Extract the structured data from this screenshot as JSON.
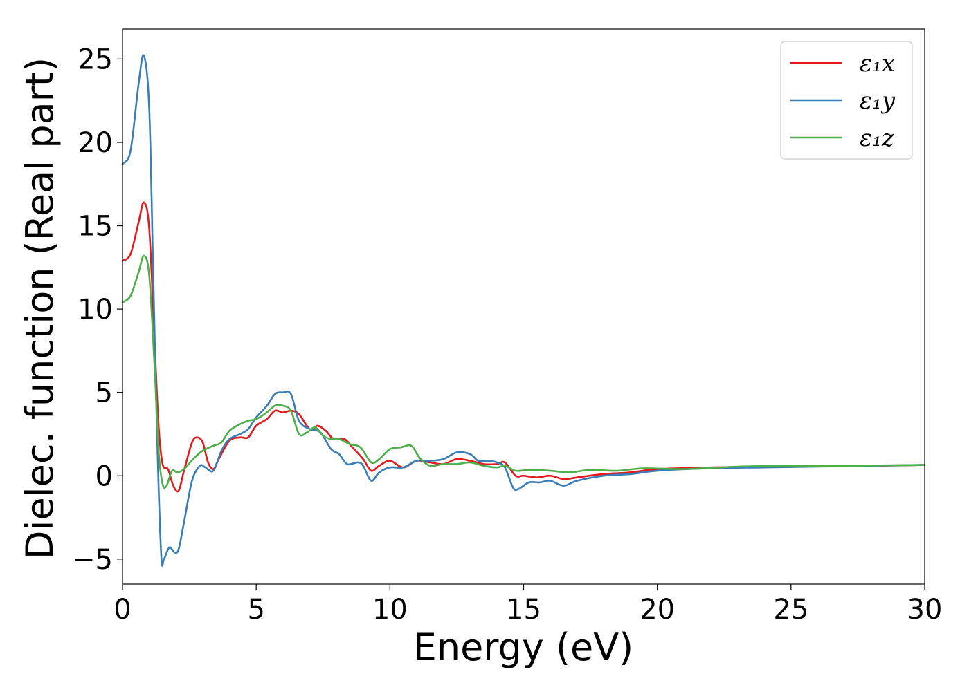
{
  "chart_data": {
    "type": "line",
    "xlabel": "Energy (eV)",
    "ylabel": "Dielec. function (Real part)",
    "xlim": [
      0,
      30
    ],
    "ylim": [
      -6.5,
      26.8
    ],
    "xticks": [
      0,
      5,
      10,
      15,
      20,
      25,
      30
    ],
    "yticks": [
      -5,
      0,
      5,
      10,
      15,
      20,
      25
    ],
    "xtick_labels": [
      "0",
      "5",
      "10",
      "15",
      "20",
      "25",
      "30"
    ],
    "ytick_labels": [
      "−5",
      "0",
      "5",
      "10",
      "15",
      "20",
      "25"
    ],
    "grid": false,
    "legend_position": "top-right",
    "series": [
      {
        "name": "ε₁x",
        "color": "#e41a1c",
        "points": [
          [
            0,
            12.9
          ],
          [
            0.3,
            13.3
          ],
          [
            0.6,
            15.2
          ],
          [
            0.8,
            16.4
          ],
          [
            1.0,
            14.8
          ],
          [
            1.2,
            8.0
          ],
          [
            1.35,
            3.0
          ],
          [
            1.5,
            0.7
          ],
          [
            1.7,
            0.4
          ],
          [
            1.9,
            -0.6
          ],
          [
            2.1,
            -0.9
          ],
          [
            2.3,
            0.3
          ],
          [
            2.6,
            2.0
          ],
          [
            2.8,
            2.3
          ],
          [
            3.0,
            2.0
          ],
          [
            3.2,
            0.8
          ],
          [
            3.4,
            0.4
          ],
          [
            3.6,
            1.0
          ],
          [
            4.0,
            2.1
          ],
          [
            4.4,
            2.3
          ],
          [
            4.7,
            2.3
          ],
          [
            5.0,
            3.0
          ],
          [
            5.4,
            3.4
          ],
          [
            5.7,
            3.9
          ],
          [
            6.0,
            3.8
          ],
          [
            6.3,
            3.9
          ],
          [
            6.6,
            3.7
          ],
          [
            7.0,
            2.8
          ],
          [
            7.3,
            3.0
          ],
          [
            7.6,
            2.7
          ],
          [
            7.9,
            2.2
          ],
          [
            8.3,
            2.2
          ],
          [
            8.6,
            1.7
          ],
          [
            9.0,
            1.0
          ],
          [
            9.3,
            0.3
          ],
          [
            9.6,
            0.6
          ],
          [
            10.0,
            0.9
          ],
          [
            10.5,
            0.5
          ],
          [
            11.0,
            0.9
          ],
          [
            11.5,
            0.8
          ],
          [
            12.0,
            0.7
          ],
          [
            12.5,
            1.0
          ],
          [
            13.0,
            0.9
          ],
          [
            13.5,
            0.7
          ],
          [
            14.0,
            0.7
          ],
          [
            14.3,
            0.8
          ],
          [
            14.7,
            0.0
          ],
          [
            15.0,
            0.0
          ],
          [
            15.5,
            -0.1
          ],
          [
            16.0,
            0.0
          ],
          [
            16.5,
            -0.2
          ],
          [
            17.0,
            -0.1
          ],
          [
            18.0,
            0.1
          ],
          [
            19.0,
            0.2
          ],
          [
            20.0,
            0.4
          ],
          [
            22.0,
            0.5
          ],
          [
            24.0,
            0.55
          ],
          [
            26.0,
            0.6
          ],
          [
            28.0,
            0.6
          ],
          [
            30.0,
            0.65
          ]
        ]
      },
      {
        "name": "ε₁y",
        "color": "#377eb8",
        "points": [
          [
            0,
            18.7
          ],
          [
            0.3,
            19.5
          ],
          [
            0.6,
            23.5
          ],
          [
            0.8,
            25.2
          ],
          [
            1.0,
            22.0
          ],
          [
            1.15,
            12.0
          ],
          [
            1.3,
            2.0
          ],
          [
            1.45,
            -4.8
          ],
          [
            1.55,
            -5.0
          ],
          [
            1.75,
            -4.3
          ],
          [
            1.95,
            -4.6
          ],
          [
            2.1,
            -4.4
          ],
          [
            2.3,
            -2.8
          ],
          [
            2.6,
            -0.3
          ],
          [
            2.9,
            0.6
          ],
          [
            3.1,
            0.5
          ],
          [
            3.4,
            0.3
          ],
          [
            3.7,
            1.5
          ],
          [
            4.0,
            2.2
          ],
          [
            4.4,
            2.5
          ],
          [
            4.7,
            2.8
          ],
          [
            5.0,
            3.5
          ],
          [
            5.4,
            4.2
          ],
          [
            5.7,
            4.9
          ],
          [
            6.0,
            5.0
          ],
          [
            6.3,
            4.9
          ],
          [
            6.6,
            3.3
          ],
          [
            7.0,
            2.8
          ],
          [
            7.4,
            2.6
          ],
          [
            7.8,
            1.6
          ],
          [
            8.1,
            1.3
          ],
          [
            8.4,
            0.7
          ],
          [
            8.8,
            0.8
          ],
          [
            9.0,
            0.6
          ],
          [
            9.3,
            -0.3
          ],
          [
            9.6,
            0.2
          ],
          [
            10.0,
            0.5
          ],
          [
            10.5,
            0.5
          ],
          [
            11.0,
            0.9
          ],
          [
            11.5,
            0.9
          ],
          [
            12.0,
            1.0
          ],
          [
            12.5,
            1.4
          ],
          [
            13.0,
            1.3
          ],
          [
            13.3,
            0.9
          ],
          [
            13.7,
            0.9
          ],
          [
            14.0,
            0.8
          ],
          [
            14.3,
            0.5
          ],
          [
            14.6,
            -0.7
          ],
          [
            14.8,
            -0.8
          ],
          [
            15.2,
            -0.4
          ],
          [
            15.6,
            -0.4
          ],
          [
            16.0,
            -0.3
          ],
          [
            16.5,
            -0.6
          ],
          [
            17.0,
            -0.3
          ],
          [
            18.0,
            0.0
          ],
          [
            19.0,
            0.1
          ],
          [
            20.0,
            0.3
          ],
          [
            22.0,
            0.45
          ],
          [
            24.0,
            0.5
          ],
          [
            26.0,
            0.55
          ],
          [
            28.0,
            0.6
          ],
          [
            30.0,
            0.65
          ]
        ]
      },
      {
        "name": "ε₁z",
        "color": "#4daf4a",
        "points": [
          [
            0,
            10.4
          ],
          [
            0.3,
            10.8
          ],
          [
            0.6,
            12.2
          ],
          [
            0.8,
            13.2
          ],
          [
            1.0,
            12.0
          ],
          [
            1.2,
            6.5
          ],
          [
            1.35,
            1.5
          ],
          [
            1.5,
            -0.5
          ],
          [
            1.65,
            -0.6
          ],
          [
            1.85,
            0.3
          ],
          [
            2.05,
            0.2
          ],
          [
            2.3,
            0.4
          ],
          [
            2.7,
            1.1
          ],
          [
            3.0,
            1.5
          ],
          [
            3.4,
            1.8
          ],
          [
            3.7,
            2.0
          ],
          [
            4.0,
            2.7
          ],
          [
            4.4,
            3.1
          ],
          [
            4.7,
            3.3
          ],
          [
            5.0,
            3.4
          ],
          [
            5.4,
            3.8
          ],
          [
            5.7,
            4.2
          ],
          [
            6.0,
            4.2
          ],
          [
            6.3,
            3.9
          ],
          [
            6.6,
            2.5
          ],
          [
            6.9,
            2.6
          ],
          [
            7.2,
            2.9
          ],
          [
            7.5,
            2.4
          ],
          [
            7.8,
            2.2
          ],
          [
            8.1,
            2.2
          ],
          [
            8.5,
            1.9
          ],
          [
            8.9,
            1.7
          ],
          [
            9.3,
            0.8
          ],
          [
            9.6,
            1.0
          ],
          [
            10.0,
            1.6
          ],
          [
            10.4,
            1.7
          ],
          [
            10.8,
            1.8
          ],
          [
            11.1,
            1.1
          ],
          [
            11.5,
            0.6
          ],
          [
            12.0,
            0.7
          ],
          [
            12.5,
            0.7
          ],
          [
            13.0,
            0.8
          ],
          [
            13.5,
            0.6
          ],
          [
            14.0,
            0.5
          ],
          [
            14.3,
            0.6
          ],
          [
            14.7,
            0.3
          ],
          [
            15.2,
            0.35
          ],
          [
            16.0,
            0.3
          ],
          [
            16.7,
            0.2
          ],
          [
            17.5,
            0.35
          ],
          [
            18.5,
            0.3
          ],
          [
            19.5,
            0.45
          ],
          [
            21.0,
            0.4
          ],
          [
            23.0,
            0.55
          ],
          [
            25.0,
            0.6
          ],
          [
            27.0,
            0.6
          ],
          [
            30.0,
            0.65
          ]
        ]
      }
    ]
  }
}
